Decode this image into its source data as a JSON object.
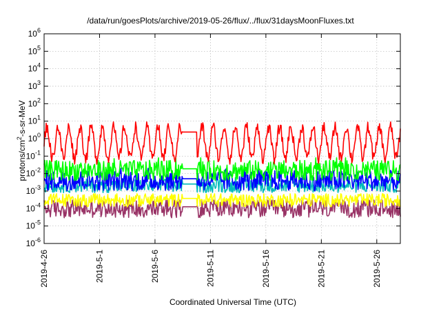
{
  "chart_data": {
    "type": "line",
    "title": "/data/run/goesPlots/archive/2019-05-26/flux/../flux/31daysMoonFluxes.txt",
    "xlabel": "Coordinated Universal Time (UTC)",
    "ylabel_parts": [
      "protons/cm",
      "2",
      "-s-sr-MeV"
    ],
    "y_scale": "log",
    "ylim": [
      1e-06,
      1000000.0
    ],
    "xlim": [
      "2019-04-26",
      "2019-05-28T03:00"
    ],
    "grid": true,
    "legend": "none",
    "x_ticks": [
      "2019-4-26",
      "2019-5-1",
      "2019-5-6",
      "2019-5-11",
      "2019-5-16",
      "2019-5-21",
      "2019-5-26"
    ],
    "y_ticks": [
      {
        "value": 1e-06,
        "mant": "10",
        "exp": "-6"
      },
      {
        "value": 1e-05,
        "mant": "10",
        "exp": "-5"
      },
      {
        "value": 0.0001,
        "mant": "10",
        "exp": "-4"
      },
      {
        "value": 0.001,
        "mant": "10",
        "exp": "-3"
      },
      {
        "value": 0.01,
        "mant": "10",
        "exp": "-2"
      },
      {
        "value": 0.1,
        "mant": "10",
        "exp": "-1"
      },
      {
        "value": 1.0,
        "mant": "10",
        "exp": "0"
      },
      {
        "value": 10.0,
        "mant": "10",
        "exp": "1"
      },
      {
        "value": 100.0,
        "mant": "10",
        "exp": "2"
      },
      {
        "value": 1000.0,
        "mant": "10",
        "exp": "3"
      },
      {
        "value": 10000.0,
        "mant": "10",
        "exp": "4"
      },
      {
        "value": 100000.0,
        "mant": "10",
        "exp": "5"
      },
      {
        "value": 1000000.0,
        "mant": "10",
        "exp": "6"
      }
    ],
    "data_gap": [
      "2019-05-08T12:00",
      "2019-05-09T18:00"
    ],
    "series": [
      {
        "color": "#ff0000",
        "center": 0.6,
        "min": 0.03,
        "max": 9,
        "variation": "diurnal"
      },
      {
        "color": "#00ff00",
        "center": 0.015,
        "min": 0.004,
        "max": 0.08,
        "variation": "noisy"
      },
      {
        "color": "#0000ff",
        "center": 0.004,
        "min": 0.001,
        "max": 0.02,
        "variation": "noisy"
      },
      {
        "color": "#00bbbb",
        "center": 0.002,
        "min": 0.0008,
        "max": 0.006,
        "variation": "noisy"
      },
      {
        "color": "#ffff00",
        "center": 0.0003,
        "min": 0.0001,
        "max": 0.0007,
        "variation": "noisy"
      },
      {
        "color": "#993366",
        "center": 0.0001,
        "min": 2e-05,
        "max": 0.0003,
        "variation": "noisy"
      }
    ]
  }
}
